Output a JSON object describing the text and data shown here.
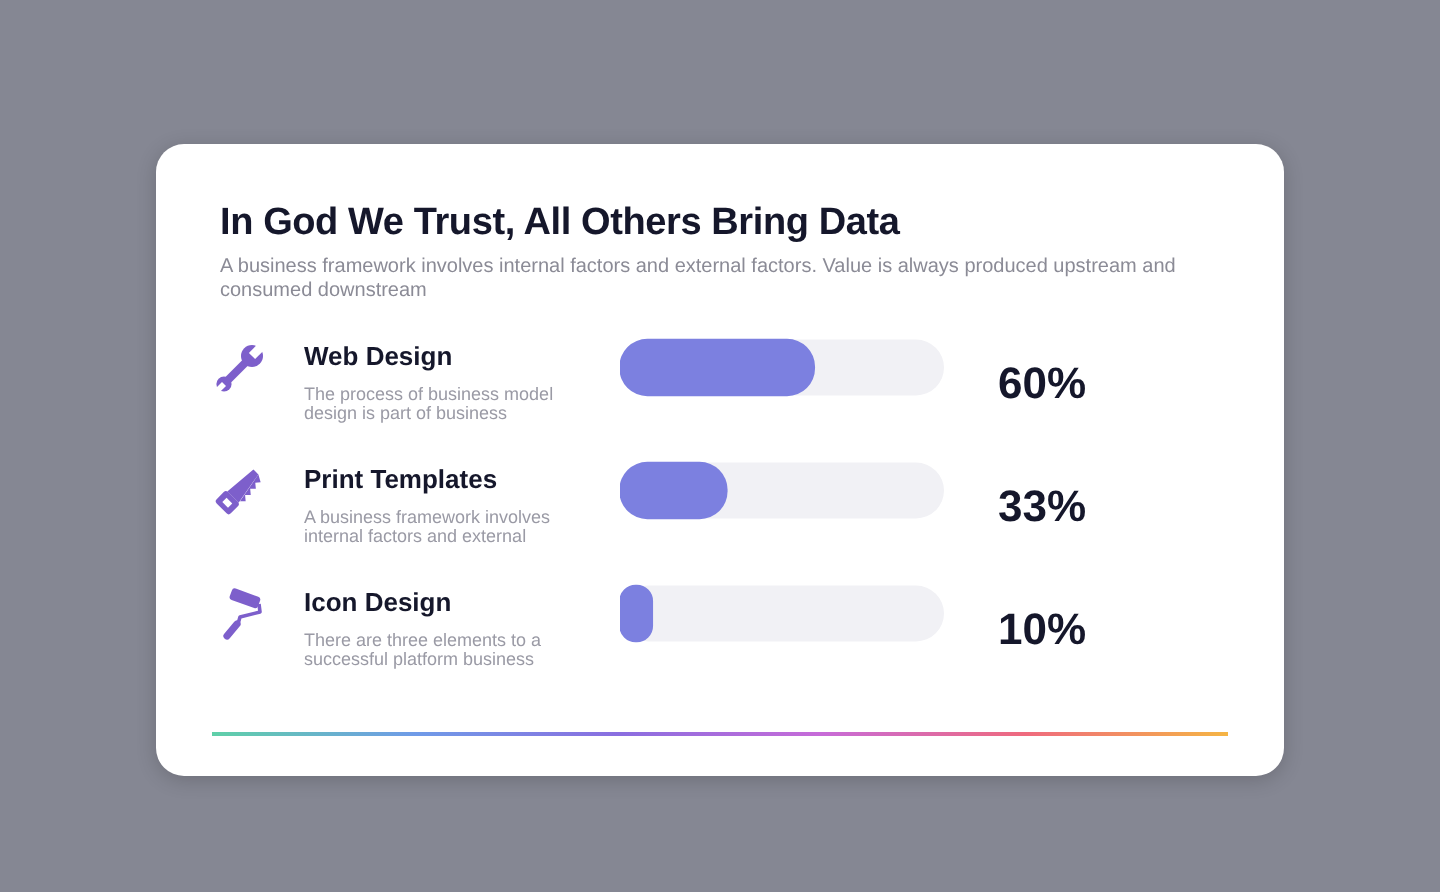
{
  "chart_data": {
    "type": "bar",
    "orientation": "horizontal",
    "title": "In God We Trust, All Others Bring Data",
    "subtitle": "A business framework involves internal factors and external factors. Value is always produced upstream and consumed downstream",
    "categories": [
      "Web Design",
      "Print Templates",
      "Icon Design"
    ],
    "values": [
      60,
      33,
      10
    ],
    "value_labels": [
      "60%",
      "33%",
      "10%"
    ],
    "color": "#7c80e0",
    "xlim": [
      0,
      100
    ],
    "tick_labels": "y",
    "annotations": [
      "The process of business model design is part of business",
      "A business framework involves internal factors and external",
      "There are three elements to a successful platform business"
    ]
  }
}
